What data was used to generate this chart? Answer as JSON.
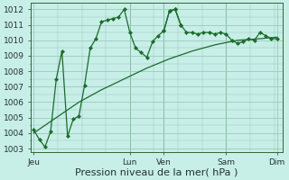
{
  "xlabel": "Pression niveau de la mer( hPa )",
  "background_color": "#c8eee8",
  "grid_color": "#99ccbb",
  "line_color": "#1a6b2a",
  "vline_color": "#336633",
  "ylim": [
    1002.8,
    1012.4
  ],
  "yticks": [
    1003,
    1004,
    1005,
    1006,
    1007,
    1008,
    1009,
    1010,
    1011,
    1012
  ],
  "xlim": [
    -0.5,
    44
  ],
  "day_positions": [
    0,
    17,
    23,
    34,
    43
  ],
  "day_labels": [
    "Jeu",
    "Lun",
    "Ven",
    "Sam",
    "Dim"
  ],
  "vline_positions": [
    17,
    23,
    34
  ],
  "smooth_x": [
    0,
    4,
    8,
    12,
    16,
    20,
    24,
    28,
    32,
    36,
    40,
    43
  ],
  "smooth_y": [
    1004.0,
    1005.0,
    1006.0,
    1006.8,
    1007.5,
    1008.2,
    1008.8,
    1009.3,
    1009.7,
    1010.0,
    1010.1,
    1010.2
  ],
  "jagged1_x": [
    0,
    1,
    2,
    3,
    4,
    5,
    6,
    7,
    8,
    9,
    10,
    11,
    12,
    13,
    14,
    15,
    16,
    17,
    18,
    19,
    20,
    21,
    22,
    23,
    24,
    25,
    26
  ],
  "jagged1_y": [
    1004.2,
    1003.6,
    1003.1,
    1004.1,
    1007.5,
    1009.3,
    1003.8,
    1004.9,
    1005.1,
    1007.1,
    1009.5,
    1010.1,
    1011.2,
    1011.3,
    1011.4,
    1011.5,
    1012.0,
    1010.5,
    1009.5,
    1009.2,
    1008.9,
    1009.9,
    1010.3,
    1010.6,
    1011.9,
    1012.0,
    1011.0
  ],
  "jagged2_x": [
    23,
    24,
    25,
    26,
    27,
    28,
    29,
    30,
    31,
    32,
    33,
    34,
    35,
    36,
    37,
    38,
    39,
    40,
    41,
    42,
    43
  ],
  "jagged2_y": [
    1010.6,
    1011.9,
    1012.0,
    1011.0,
    1010.5,
    1010.5,
    1010.4,
    1010.5,
    1010.5,
    1010.4,
    1010.5,
    1010.4,
    1010.0,
    1009.8,
    1009.9,
    1010.1,
    1010.0,
    1010.5,
    1010.3,
    1010.1,
    1010.1
  ],
  "xlabel_fontsize": 8,
  "tick_fontsize": 6.5,
  "linewidth": 0.9,
  "markersize": 2.2
}
